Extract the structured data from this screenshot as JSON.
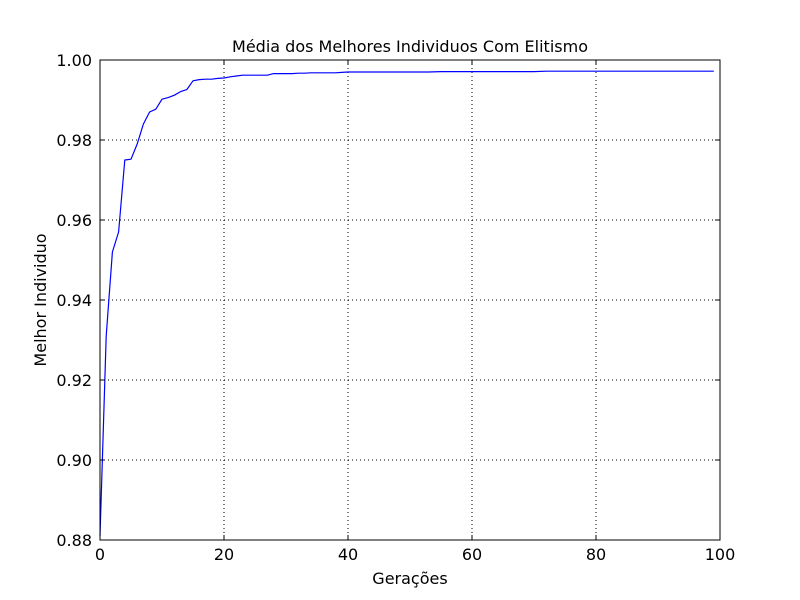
{
  "chart_data": {
    "type": "line",
    "title": "Média dos Melhores Individuos Com Elitismo",
    "xlabel": "Gerações",
    "ylabel": "Melhor Individuo",
    "xlim": [
      0,
      100
    ],
    "ylim": [
      0.88,
      1.0
    ],
    "x_ticks": [
      0,
      20,
      40,
      60,
      80,
      100
    ],
    "x_tick_labels": [
      "0",
      "20",
      "40",
      "60",
      "80",
      "100"
    ],
    "y_ticks": [
      0.88,
      0.9,
      0.92,
      0.94,
      0.96,
      0.98,
      1.0
    ],
    "y_tick_labels": [
      "0.88",
      "0.90",
      "0.92",
      "0.94",
      "0.96",
      "0.98",
      "1.00"
    ],
    "grid": true,
    "series": [
      {
        "color": "#0000ff",
        "x": [
          0,
          1,
          2,
          3,
          4,
          5,
          6,
          7,
          8,
          9,
          10,
          11,
          12,
          13,
          14,
          15,
          16,
          17,
          18,
          19,
          20,
          21,
          22,
          23,
          24,
          25,
          26,
          27,
          28,
          29,
          30,
          31,
          32,
          33,
          34,
          35,
          36,
          37,
          38,
          39,
          40,
          45,
          50,
          53,
          55,
          56,
          60,
          65,
          70,
          72,
          75,
          80,
          85,
          90,
          95,
          99
        ],
        "y": [
          0.881,
          0.931,
          0.952,
          0.957,
          0.975,
          0.9752,
          0.979,
          0.984,
          0.987,
          0.9877,
          0.9902,
          0.9906,
          0.9912,
          0.9921,
          0.9926,
          0.9948,
          0.9951,
          0.9952,
          0.9952,
          0.9954,
          0.9955,
          0.9958,
          0.996,
          0.9962,
          0.9962,
          0.9962,
          0.9962,
          0.9962,
          0.9966,
          0.9966,
          0.9966,
          0.9966,
          0.9967,
          0.9967,
          0.9968,
          0.9968,
          0.9968,
          0.9968,
          0.9968,
          0.9969,
          0.997,
          0.997,
          0.997,
          0.997,
          0.9971,
          0.9971,
          0.9971,
          0.9971,
          0.9971,
          0.9972,
          0.9972,
          0.9972,
          0.9972,
          0.9972,
          0.9972,
          0.9972
        ]
      }
    ]
  }
}
